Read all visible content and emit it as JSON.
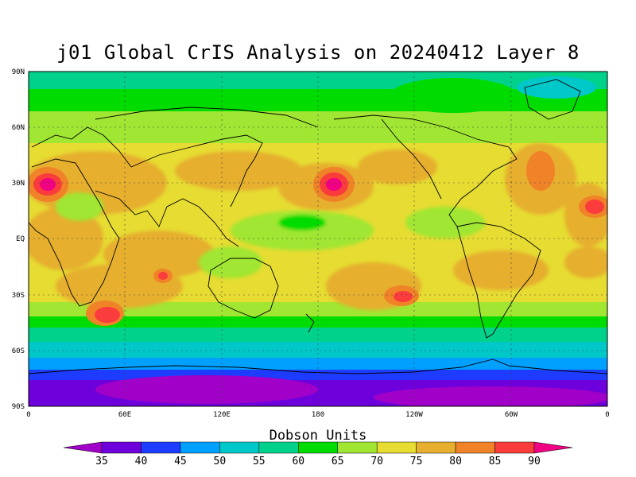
{
  "title": "j01 Global CrIS Analysis on 20240412 Layer 8",
  "map": {
    "lat_labels": [
      "90N",
      "60N",
      "30N",
      "EQ",
      "30S",
      "60S",
      "90S"
    ],
    "lon_labels": [
      "0",
      "60E",
      "120E",
      "180",
      "120W",
      "60W",
      "0"
    ]
  },
  "colorbar": {
    "title": "Dobson Units",
    "ticks": [
      "35",
      "40",
      "45",
      "50",
      "55",
      "60",
      "65",
      "70",
      "75",
      "80",
      "85",
      "90"
    ],
    "colors": [
      "#a000c8",
      "#6e00dc",
      "#1e3cff",
      "#00a0ff",
      "#00c8c8",
      "#00d28c",
      "#00dc00",
      "#a0e632",
      "#e6dc32",
      "#e6af2d",
      "#f08228",
      "#fa3c3c",
      "#f00082"
    ]
  }
}
